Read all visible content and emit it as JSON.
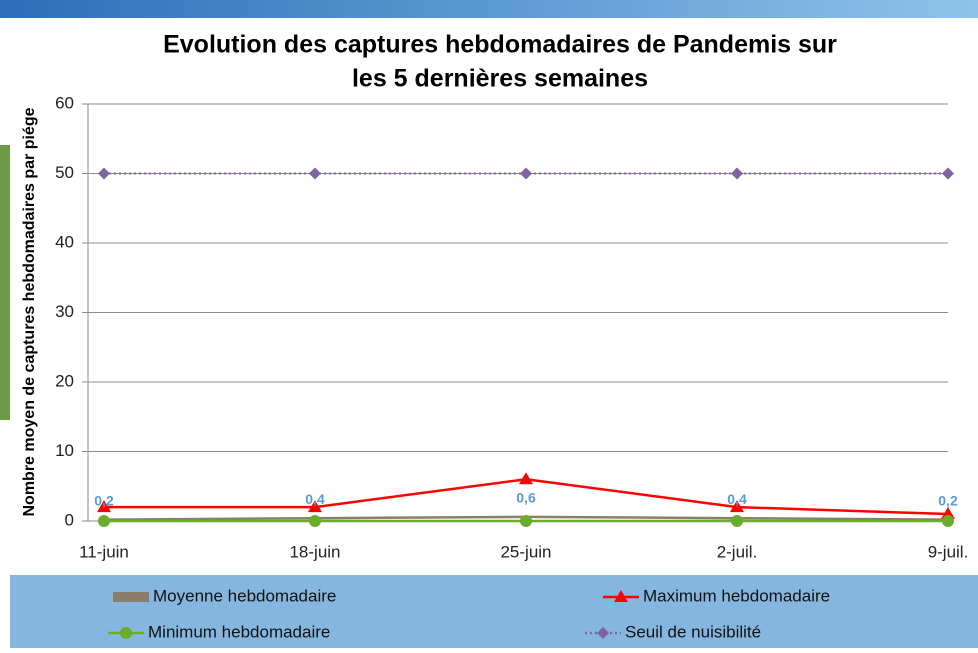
{
  "chart_data": {
    "type": "line",
    "title": [
      "Evolution des captures hebdomadaires de Pandemis sur",
      "les 5 dernières semaines"
    ],
    "y_label": "Nombre moyen de captures hebdomadaires par piége",
    "categories": [
      "11-juin",
      "18-juin",
      "25-juin",
      "2-juil.",
      "9-juil."
    ],
    "series": [
      {
        "name": "Moyenne hebdomadaire",
        "color": "#8b7d6b",
        "marker": "none",
        "values": [
          0.2,
          0.4,
          0.6,
          0.4,
          0.2
        ],
        "value_labels": [
          "0,2",
          "0,4",
          "0,6",
          "0,4",
          "0,2"
        ],
        "label_color": "#5b9bd5"
      },
      {
        "name": "Maximum hebdomadaire",
        "color": "#ff0000",
        "marker": "triangle",
        "values": [
          2,
          2,
          6,
          2,
          1
        ]
      },
      {
        "name": "Minimum hebdomadaire",
        "color": "#6aad2e",
        "marker": "circle",
        "values": [
          0,
          0,
          0,
          0,
          0
        ]
      },
      {
        "name": "Seuil de nuisibilité",
        "color": "#8064a2",
        "marker": "diamond",
        "dash": "dotted",
        "values": [
          50,
          50,
          50,
          50,
          50
        ]
      }
    ],
    "ylim": [
      0,
      60
    ],
    "yticks": [
      0,
      10,
      20,
      30,
      40,
      50,
      60
    ],
    "grid": true,
    "legend": "bottom"
  }
}
